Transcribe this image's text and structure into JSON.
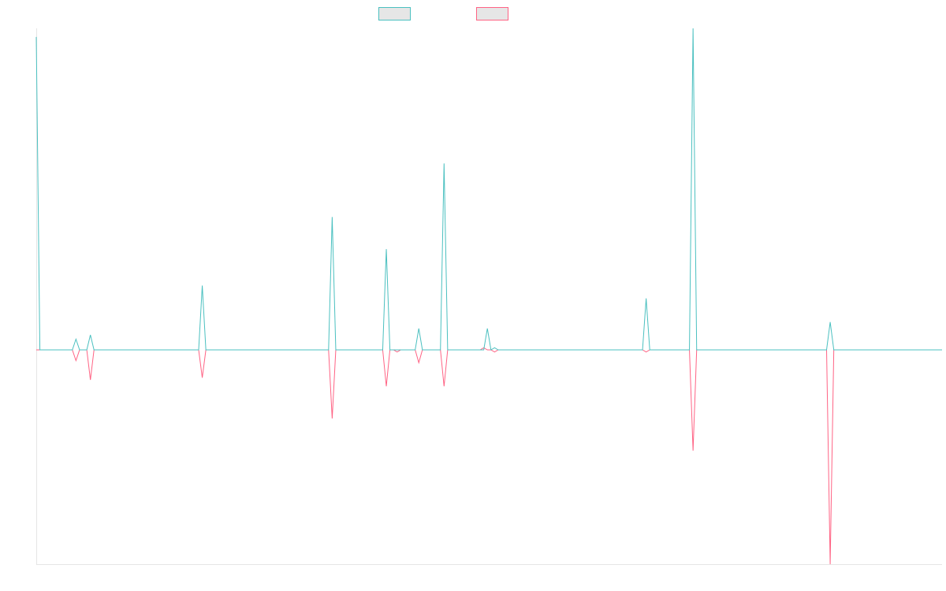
{
  "chart_data": {
    "type": "line",
    "ylim": [
      -100,
      150
    ],
    "series": [
      {
        "color": "#4bc0c0",
        "values": [
          146,
          0,
          0,
          0,
          0,
          0,
          0,
          0,
          0,
          0,
          0,
          5,
          0,
          0,
          0,
          7,
          0,
          0,
          0,
          0,
          0,
          0,
          0,
          0,
          0,
          0,
          0,
          0,
          0,
          0,
          0,
          0,
          0,
          0,
          0,
          0,
          0,
          0,
          0,
          0,
          0,
          0,
          0,
          0,
          0,
          0,
          30,
          0,
          0,
          0,
          0,
          0,
          0,
          0,
          0,
          0,
          0,
          0,
          0,
          0,
          0,
          0,
          0,
          0,
          0,
          0,
          0,
          0,
          0,
          0,
          0,
          0,
          0,
          0,
          0,
          0,
          0,
          0,
          0,
          0,
          0,
          0,
          62,
          0,
          0,
          0,
          0,
          0,
          0,
          0,
          0,
          0,
          0,
          0,
          0,
          0,
          0,
          47,
          0,
          0,
          0,
          0,
          0,
          0,
          0,
          0,
          10,
          0,
          0,
          0,
          0,
          0,
          0,
          87,
          0,
          0,
          0,
          0,
          0,
          0,
          0,
          0,
          0,
          0,
          0,
          10,
          0,
          1,
          0,
          0,
          0,
          0,
          0,
          0,
          0,
          0,
          0,
          0,
          0,
          0,
          0,
          0,
          0,
          0,
          0,
          0,
          0,
          0,
          0,
          0,
          0,
          0,
          0,
          0,
          0,
          0,
          0,
          0,
          0,
          0,
          0,
          0,
          0,
          0,
          0,
          0,
          0,
          0,
          0,
          24,
          0,
          0,
          0,
          0,
          0,
          0,
          0,
          0,
          0,
          0,
          0,
          0,
          150,
          0,
          0,
          0,
          0,
          0,
          0,
          0,
          0,
          0,
          0,
          0,
          0,
          0,
          0,
          0,
          0,
          0,
          0,
          0,
          0,
          0,
          0,
          0,
          0,
          0,
          0,
          0,
          0,
          0,
          0,
          0,
          0,
          0,
          0,
          0,
          0,
          0,
          13,
          0,
          0,
          0,
          0,
          0,
          0,
          0,
          0,
          0,
          0,
          0,
          0,
          0,
          0,
          0,
          0,
          0,
          0,
          0,
          0,
          0,
          0,
          0,
          0,
          0,
          0,
          0,
          0,
          0,
          0,
          0
        ]
      },
      {
        "color": "#ff6384",
        "values": [
          0,
          0,
          0,
          0,
          0,
          0,
          0,
          0,
          0,
          0,
          0,
          -5,
          0,
          0,
          0,
          -14,
          0,
          0,
          0,
          0,
          0,
          0,
          0,
          0,
          0,
          0,
          0,
          0,
          0,
          0,
          0,
          0,
          0,
          0,
          0,
          0,
          0,
          0,
          0,
          0,
          0,
          0,
          0,
          0,
          0,
          0,
          -13,
          0,
          0,
          0,
          0,
          0,
          0,
          0,
          0,
          0,
          0,
          0,
          0,
          0,
          0,
          0,
          0,
          0,
          0,
          0,
          0,
          0,
          0,
          0,
          0,
          0,
          0,
          0,
          0,
          0,
          0,
          0,
          0,
          0,
          0,
          0,
          -32,
          0,
          0,
          0,
          0,
          0,
          0,
          0,
          0,
          0,
          0,
          0,
          0,
          0,
          0,
          -17,
          0,
          0,
          -1,
          0,
          0,
          0,
          0,
          0,
          -6,
          0,
          0,
          0,
          0,
          0,
          0,
          -17,
          0,
          0,
          0,
          0,
          0,
          0,
          0,
          0,
          0,
          0,
          1,
          0,
          0,
          -1,
          0,
          0,
          0,
          0,
          0,
          0,
          0,
          0,
          0,
          0,
          0,
          0,
          0,
          0,
          0,
          0,
          0,
          0,
          0,
          0,
          0,
          0,
          0,
          0,
          0,
          0,
          0,
          0,
          0,
          0,
          0,
          0,
          0,
          0,
          0,
          0,
          0,
          0,
          0,
          0,
          0,
          -1,
          0,
          0,
          0,
          0,
          0,
          0,
          0,
          0,
          0,
          0,
          0,
          0,
          -47,
          0,
          0,
          0,
          0,
          0,
          0,
          0,
          0,
          0,
          0,
          0,
          0,
          0,
          0,
          0,
          0,
          0,
          0,
          0,
          0,
          0,
          0,
          0,
          0,
          0,
          0,
          0,
          0,
          0,
          0,
          0,
          0,
          0,
          0,
          0,
          0,
          0,
          -100,
          0,
          0,
          0,
          0,
          0,
          0,
          0,
          0,
          0,
          0,
          0,
          0,
          0,
          0,
          0,
          0,
          0,
          0,
          0,
          0,
          0,
          0,
          0,
          0,
          0,
          0,
          0,
          0,
          0,
          0,
          0
        ]
      }
    ]
  }
}
